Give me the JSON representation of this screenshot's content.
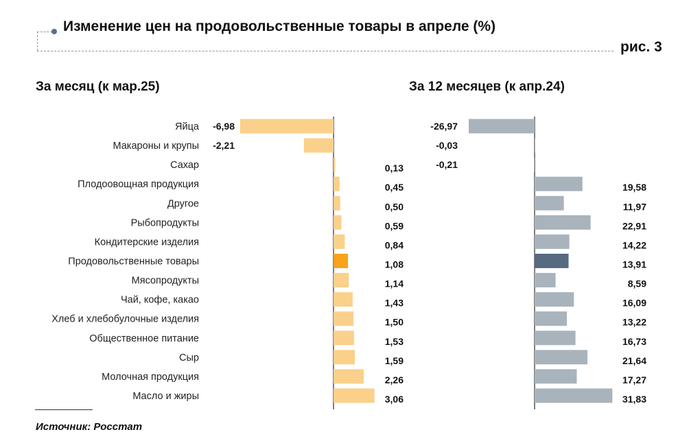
{
  "header": {
    "title": "Изменение цен на продовольственные товары в апреле (%)",
    "figure_number": "рис. 3"
  },
  "footer": {
    "source": "Источник: Росстат"
  },
  "chart_data": [
    {
      "type": "bar",
      "orientation": "horizontal",
      "title": "За месяц (к мар.25)",
      "categories": [
        "Яйца",
        "Макароны и крупы",
        "Сахар",
        "Плодоовощная продукция",
        "Другое",
        "Рыбопродукты",
        "Кондитерские изделия",
        "Продовольственные товары",
        "Мясопродукты",
        "Чай, кофе, какао",
        "Хлеб и хлебобулочные изделия",
        "Общественное питание",
        "Сыр",
        "Молочная продукция",
        "Масло и жиры"
      ],
      "values": [
        -6.98,
        -2.21,
        0.13,
        0.45,
        0.5,
        0.59,
        0.84,
        1.08,
        1.14,
        1.43,
        1.5,
        1.53,
        1.59,
        2.26,
        3.06
      ],
      "value_labels": [
        "-6,98",
        "-2,21",
        "0,13",
        "0,45",
        "0,50",
        "0,59",
        "0,84",
        "1,08",
        "1,14",
        "1,43",
        "1,50",
        "1,53",
        "1,59",
        "2,26",
        "3,06"
      ],
      "highlight_category": "Продовольственные товары",
      "colors": {
        "bar": "#fad08a",
        "highlight": "#f9a21b",
        "axis": "#555555"
      },
      "xlim": [
        -7,
        3.5
      ],
      "grid": false
    },
    {
      "type": "bar",
      "orientation": "horizontal",
      "title": "За 12 месяцев (к апр.24)",
      "categories": [
        "Яйца",
        "Макароны и крупы",
        "Сахар",
        "Плодоовощная продукция",
        "Другое",
        "Рыбопродукты",
        "Кондитерские изделия",
        "Продовольственные товары",
        "Мясопродукты",
        "Чай, кофе, какао",
        "Хлеб и хлебобулочные изделия",
        "Общественное питание",
        "Сыр",
        "Молочная продукция",
        "Масло и жиры"
      ],
      "values": [
        -26.97,
        -0.03,
        -0.21,
        19.58,
        11.97,
        22.91,
        14.22,
        13.91,
        8.59,
        16.09,
        13.22,
        16.73,
        21.64,
        17.27,
        31.83
      ],
      "value_labels": [
        "-26,97",
        "-0,03",
        "-0,21",
        "19,58",
        "11,97",
        "22,91",
        "14,22",
        "13,91",
        "8,59",
        "16,09",
        "13,22",
        "16,73",
        "21,64",
        "17,27",
        "31,83"
      ],
      "highlight_category": "Продовольственные товары",
      "colors": {
        "bar": "#a9b3bc",
        "highlight": "#566a82",
        "axis": "#555555"
      },
      "xlim": [
        -27,
        32
      ],
      "grid": false
    }
  ]
}
